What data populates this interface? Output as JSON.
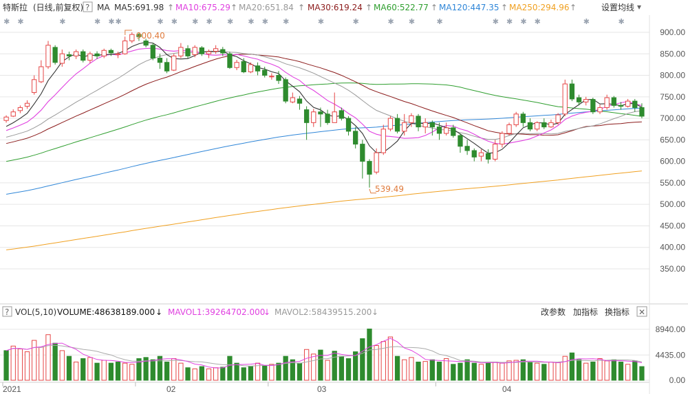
{
  "header": {
    "stock_name": "特斯拉",
    "adjust_mode": "(日线,前复权)",
    "help": "?",
    "ma_label": "MA",
    "ma_items": [
      {
        "text": "MA5:691.98",
        "arrow": "↑",
        "color": "#333333"
      },
      {
        "text": "MA10:675.29",
        "arrow": "↑",
        "color": "#e040e0"
      },
      {
        "text": "MA20:651.84",
        "arrow": "↑",
        "color": "#999999"
      },
      {
        "text": "MA30:619.24",
        "arrow": "↑",
        "color": "#8b1a1a"
      },
      {
        "text": "MA60:522.77",
        "arrow": "↑",
        "color": "#2e9e2e"
      },
      {
        "text": "MA120:447.35",
        "arrow": "↑",
        "color": "#2f86d8"
      },
      {
        "text": "MA250:294.96",
        "arrow": "↑",
        "color": "#f0a020"
      }
    ],
    "settings_button": "设置均线",
    "settings_caret": "▾"
  },
  "volume_header": {
    "vol_label": "VOL(5,10)",
    "volume": "VOLUME:48638189.000",
    "volume_arrow": "↓",
    "mavol1": "MAVOL1:39264702.000",
    "mavol1_arrow": "↓",
    "mavol2": "MAVOL2:58439515.200",
    "mavol2_arrow": "↓",
    "buttons": [
      "改参数",
      "加指标",
      "换指标"
    ],
    "close_icon": "✕"
  },
  "x_axis": {
    "labels": [
      "2021",
      "02",
      "03",
      "04"
    ]
  },
  "colors": {
    "up": "#e64545",
    "down": "#2e8b2e",
    "grid": "#e6e6e6"
  },
  "chart_data": {
    "type": "candlestick",
    "title": "特斯拉",
    "y_ticks": [
      "900.00",
      "850.00",
      "800.00",
      "750.00",
      "700.00",
      "650.00",
      "600.00",
      "550.00",
      "500.00",
      "450.00",
      "400.00",
      "350.00"
    ],
    "ylim": [
      290,
      920
    ],
    "annotations": {
      "high": "900.40",
      "low": "539.49"
    },
    "candles": [
      [
        695,
        703,
        690,
        707
      ],
      [
        705,
        715,
        703,
        721
      ],
      [
        718,
        725,
        712,
        730
      ],
      [
        728,
        735,
        722,
        742
      ],
      [
        760,
        790,
        755,
        800
      ],
      [
        785,
        820,
        782,
        835
      ],
      [
        820,
        870,
        815,
        880
      ],
      [
        865,
        830,
        825,
        870
      ],
      [
        828,
        850,
        820,
        860
      ],
      [
        848,
        845,
        835,
        855
      ],
      [
        845,
        855,
        838,
        860
      ],
      [
        855,
        835,
        830,
        860
      ],
      [
        835,
        850,
        828,
        855
      ],
      [
        850,
        845,
        838,
        856
      ],
      [
        845,
        858,
        840,
        862
      ],
      [
        858,
        852,
        845,
        862
      ],
      [
        848,
        850,
        840,
        855
      ],
      [
        850,
        880,
        848,
        890
      ],
      [
        880,
        895,
        875,
        900
      ],
      [
        895,
        890,
        880,
        900
      ],
      [
        880,
        870,
        865,
        885
      ],
      [
        870,
        840,
        835,
        875
      ],
      [
        840,
        830,
        815,
        850
      ],
      [
        830,
        810,
        805,
        840
      ],
      [
        812,
        845,
        810,
        850
      ],
      [
        845,
        865,
        840,
        875
      ],
      [
        862,
        845,
        840,
        870
      ],
      [
        848,
        865,
        842,
        870
      ],
      [
        864,
        850,
        845,
        868
      ],
      [
        850,
        855,
        840,
        860
      ],
      [
        856,
        862,
        850,
        870
      ],
      [
        860,
        852,
        845,
        866
      ],
      [
        850,
        818,
        815,
        855
      ],
      [
        818,
        830,
        812,
        836
      ],
      [
        832,
        808,
        805,
        840
      ],
      [
        808,
        825,
        805,
        830
      ],
      [
        822,
        810,
        800,
        830
      ],
      [
        812,
        800,
        795,
        820
      ],
      [
        798,
        798,
        790,
        805
      ],
      [
        800,
        788,
        780,
        810
      ],
      [
        790,
        740,
        735,
        795
      ],
      [
        738,
        748,
        735,
        760
      ],
      [
        745,
        735,
        720,
        752
      ],
      [
        720,
        690,
        650,
        728
      ],
      [
        690,
        715,
        680,
        722
      ],
      [
        715,
        710,
        680,
        725
      ],
      [
        710,
        690,
        685,
        720
      ],
      [
        690,
        715,
        690,
        760
      ],
      [
        718,
        700,
        695,
        725
      ],
      [
        700,
        670,
        660,
        705
      ],
      [
        670,
        640,
        630,
        680
      ],
      [
        640,
        600,
        560,
        650
      ],
      [
        600,
        570,
        539,
        605
      ],
      [
        575,
        620,
        570,
        630
      ],
      [
        620,
        675,
        615,
        685
      ],
      [
        675,
        700,
        670,
        705
      ],
      [
        700,
        670,
        665,
        710
      ],
      [
        670,
        690,
        660,
        710
      ],
      [
        690,
        706,
        680,
        712
      ],
      [
        705,
        680,
        670,
        710
      ],
      [
        680,
        690,
        665,
        700
      ],
      [
        690,
        680,
        660,
        695
      ],
      [
        680,
        665,
        650,
        690
      ],
      [
        665,
        678,
        660,
        690
      ],
      [
        678,
        660,
        655,
        685
      ],
      [
        660,
        635,
        620,
        665
      ],
      [
        635,
        625,
        615,
        650
      ],
      [
        625,
        610,
        600,
        630
      ],
      [
        612,
        620,
        600,
        628
      ],
      [
        618,
        605,
        595,
        628
      ],
      [
        605,
        640,
        600,
        650
      ],
      [
        640,
        665,
        632,
        670
      ],
      [
        665,
        685,
        660,
        690
      ],
      [
        685,
        710,
        680,
        715
      ],
      [
        710,
        690,
        680,
        715
      ],
      [
        690,
        675,
        670,
        700
      ],
      [
        675,
        690,
        670,
        693
      ],
      [
        690,
        680,
        675,
        700
      ],
      [
        680,
        690,
        678,
        697
      ],
      [
        690,
        708,
        685,
        712
      ],
      [
        710,
        780,
        705,
        790
      ],
      [
        780,
        745,
        740,
        790
      ],
      [
        748,
        738,
        730,
        755
      ],
      [
        738,
        744,
        730,
        750
      ],
      [
        744,
        715,
        710,
        748
      ],
      [
        715,
        725,
        710,
        732
      ],
      [
        725,
        748,
        720,
        755
      ],
      [
        748,
        730,
        725,
        752
      ],
      [
        730,
        728,
        720,
        738
      ],
      [
        728,
        740,
        725,
        745
      ],
      [
        740,
        725,
        715,
        745
      ],
      [
        725,
        705,
        700,
        735
      ]
    ],
    "volume": {
      "ylim": [
        0,
        10500
      ],
      "y_ticks": [
        "8940.00",
        "4435.00",
        "0.00"
      ],
      "values": [
        5200,
        6000,
        5500,
        5000,
        7000,
        5800,
        8000,
        6500,
        5200,
        4200,
        3200,
        3800,
        4000,
        3000,
        3500,
        3000,
        3200,
        3000,
        2800,
        3800,
        4000,
        3600,
        4200,
        3200,
        3800,
        3000,
        2200,
        2000,
        2400,
        2000,
        2200,
        2300,
        4200,
        3000,
        2200,
        2400,
        3000,
        2500,
        2800,
        3000,
        4200,
        3600,
        3000,
        5400,
        4600,
        5300,
        3500,
        5100,
        4200,
        3800,
        5000,
        7300,
        9000,
        6100,
        6800,
        7600,
        4200,
        3600,
        4000,
        3200,
        3300,
        3600,
        3200,
        3800,
        2800,
        3000,
        3600,
        3000,
        2800,
        3000,
        3200,
        3000,
        3400,
        3500,
        3600,
        3200,
        3000,
        2800,
        3200,
        3100,
        4200,
        4800,
        3600,
        3000,
        3200,
        3800,
        3400,
        3600,
        3200,
        2800,
        3400,
        2400
      ],
      "up_days": [
        1,
        2,
        3,
        4,
        5,
        6,
        8,
        10,
        12,
        14,
        17,
        18,
        24,
        25,
        27,
        29,
        30,
        36,
        38,
        43,
        44,
        46,
        53,
        54,
        55,
        57,
        58,
        60,
        63,
        68,
        70,
        71,
        72,
        73,
        76,
        78,
        79,
        80,
        83,
        85,
        86,
        89
      ]
    },
    "moving_averages": [
      {
        "name": "MA5",
        "color": "#333333"
      },
      {
        "name": "MA10",
        "color": "#e040e0"
      },
      {
        "name": "MA20",
        "color": "#999999"
      },
      {
        "name": "MA30",
        "color": "#8b1a1a"
      },
      {
        "name": "MA60",
        "color": "#2e9e2e"
      },
      {
        "name": "MA120",
        "color": "#2f86d8"
      },
      {
        "name": "MA250",
        "color": "#f0a020"
      }
    ]
  }
}
